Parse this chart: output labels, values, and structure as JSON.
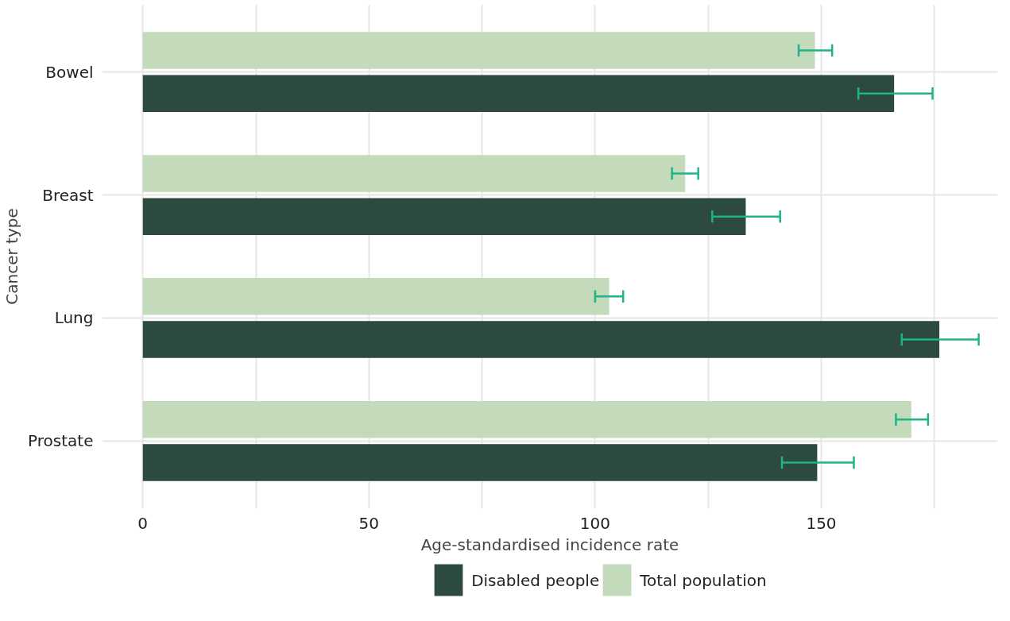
{
  "chart_data": {
    "type": "bar",
    "orientation": "horizontal",
    "xlabel": "Age-standardised incidence rate",
    "ylabel": "Cancer type",
    "categories": [
      "Bowel",
      "Breast",
      "Lung",
      "Prostate"
    ],
    "series": [
      {
        "name": "Disabled people",
        "color": "#2d4a3e",
        "values": [
          166.1,
          133.3,
          176.1,
          149.1
        ],
        "errors": [
          [
            158.2,
            174.6
          ],
          [
            125.9,
            140.9
          ],
          [
            167.8,
            184.8
          ],
          [
            141.3,
            157.2
          ]
        ]
      },
      {
        "name": "Total population",
        "color": "#c3dbbb",
        "values": [
          148.6,
          119.9,
          103.1,
          169.9
        ],
        "errors": [
          [
            145.0,
            152.4
          ],
          [
            117.0,
            122.8
          ],
          [
            100.0,
            106.2
          ],
          [
            166.5,
            173.6
          ]
        ]
      }
    ],
    "xlim": [
      -9,
      189
    ],
    "xticks": [
      0,
      {
        "value": 25,
        "label": null
      },
      50,
      {
        "value": 75,
        "label": null
      },
      100,
      {
        "value": 125,
        "label": null
      },
      150,
      {
        "value": 175,
        "label": null
      }
    ],
    "grid": true,
    "legend": "bottom"
  }
}
